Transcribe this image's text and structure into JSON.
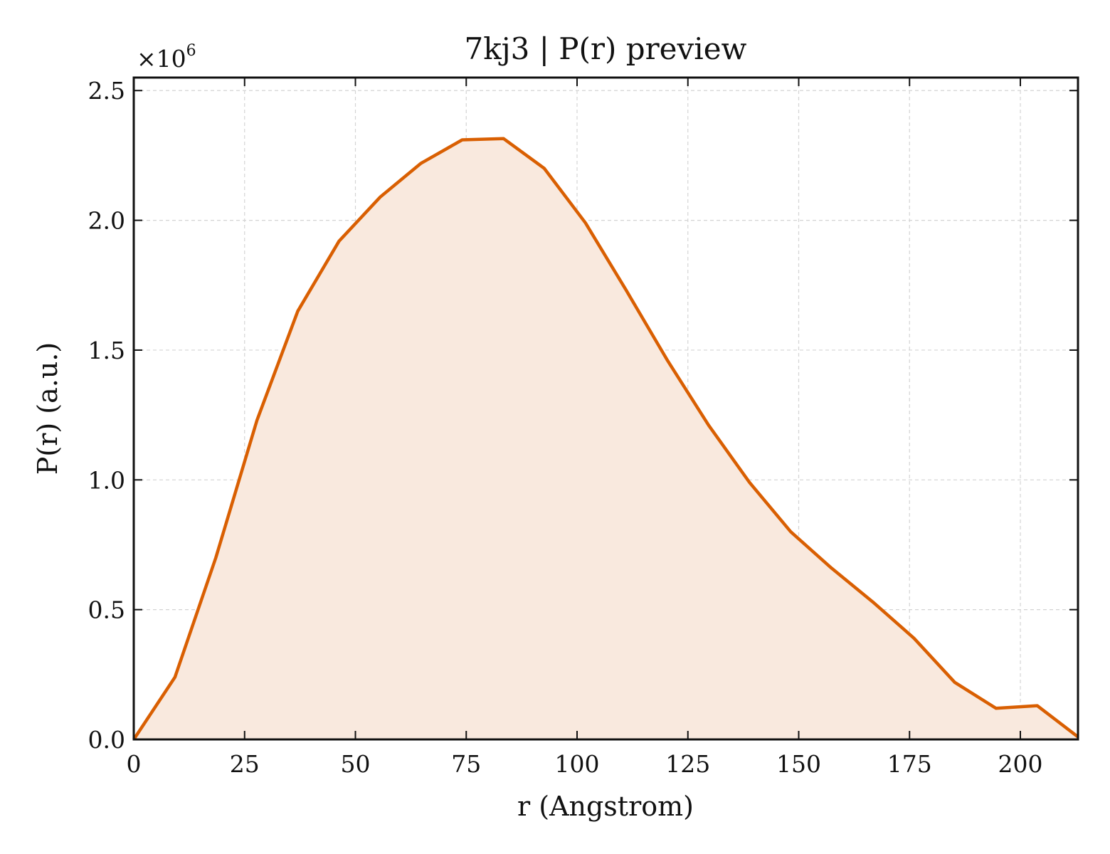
{
  "chart_data": {
    "type": "area",
    "title": "7kj3 | P(r) preview",
    "xlabel": "r (Angstrom)",
    "ylabel": "P(r) (a.u.)",
    "y_multiplier_label": "×10",
    "y_multiplier_exponent": "6",
    "xlim": [
      0,
      213
    ],
    "ylim": [
      0,
      2.55
    ],
    "x_ticks": [
      0,
      25,
      50,
      75,
      100,
      125,
      150,
      175,
      200
    ],
    "x_tick_labels": [
      "0",
      "25",
      "50",
      "75",
      "100",
      "125",
      "150",
      "175",
      "200"
    ],
    "y_ticks": [
      0,
      0.5,
      1.0,
      1.5,
      2.0,
      2.5
    ],
    "y_tick_labels": [
      "0.0",
      "0.5",
      "1.0",
      "1.5",
      "2.0",
      "2.5"
    ],
    "grid": true,
    "series": [
      {
        "x": [
          0,
          9.3,
          18.5,
          27.8,
          37.0,
          46.3,
          55.6,
          64.8,
          74.1,
          83.4,
          92.6,
          101.9,
          111.1,
          120.4,
          129.7,
          138.9,
          148.2,
          157.4,
          166.7,
          176.0,
          185.2,
          194.5,
          203.8,
          213.0
        ],
        "y": [
          0.0,
          0.24,
          0.7,
          1.23,
          1.65,
          1.92,
          2.09,
          2.22,
          2.31,
          2.315,
          2.2,
          1.99,
          1.73,
          1.46,
          1.21,
          0.99,
          0.8,
          0.66,
          0.53,
          0.39,
          0.22,
          0.12,
          0.13,
          0.01
        ]
      }
    ],
    "colors": {
      "line": "#d95f02",
      "fill": "#f9e9de"
    }
  }
}
